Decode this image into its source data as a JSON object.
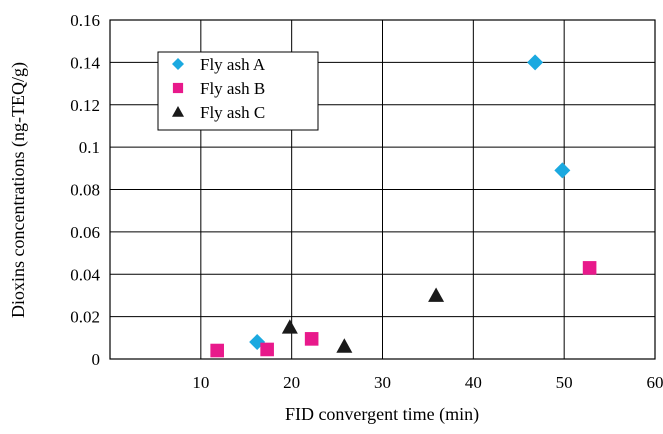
{
  "chart_data": {
    "type": "scatter",
    "title": "",
    "xlabel": "FID convergent time (min)",
    "ylabel": "Dioxins concentrations (ng-TEQ/g)",
    "xlim": [
      0,
      60
    ],
    "ylim": [
      0,
      0.16
    ],
    "x_ticks": [
      "10",
      "20",
      "30",
      "40",
      "50",
      "60"
    ],
    "y_ticks": [
      "0",
      "0.02",
      "0.04",
      "0.06",
      "0.08",
      "0.1",
      "0.12",
      "0.14",
      "0.16"
    ],
    "grid": true,
    "legend_position": "top-left",
    "series": [
      {
        "name": "Fly ash A",
        "marker": "diamond",
        "color": "#1ba9e0",
        "points": [
          [
            16.2,
            0.008
          ],
          [
            46.8,
            0.14
          ],
          [
            49.8,
            0.089
          ]
        ]
      },
      {
        "name": "Fly ash B",
        "marker": "square",
        "color": "#e8198b",
        "points": [
          [
            11.8,
            0.004
          ],
          [
            17.3,
            0.0045
          ],
          [
            22.2,
            0.0095
          ],
          [
            52.8,
            0.043
          ]
        ]
      },
      {
        "name": "Fly ash C",
        "marker": "triangle",
        "color": "#1a1a1a",
        "points": [
          [
            19.8,
            0.015
          ],
          [
            25.8,
            0.006
          ],
          [
            35.9,
            0.03
          ]
        ]
      }
    ]
  }
}
